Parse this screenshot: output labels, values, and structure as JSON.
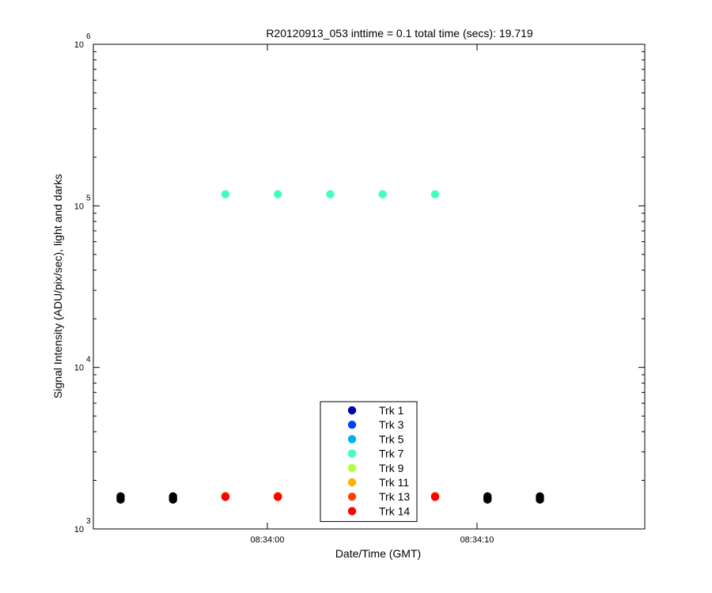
{
  "chart_data": {
    "type": "scatter",
    "title": "R20120913_053 inttime = 0.1 total time (secs): 19.719",
    "xlabel": "Date/Time (GMT)",
    "ylabel": "Signal Intensity (ADU/pix/sec), light and darks",
    "x_ticks": [
      {
        "value": 0,
        "label": "08:34:00"
      },
      {
        "value": 10,
        "label": "08:34:10"
      }
    ],
    "xlim": [
      -8.3,
      18.0
    ],
    "y_scale": "log",
    "ylim": [
      1000,
      1000000
    ],
    "y_ticks": [
      {
        "value": 1000,
        "base": "10",
        "exp": "3"
      },
      {
        "value": 10000,
        "base": "10",
        "exp": "4"
      },
      {
        "value": 100000,
        "base": "10",
        "exp": "5"
      },
      {
        "value": 1000000,
        "base": "10",
        "exp": "6"
      }
    ],
    "grid": false,
    "legend_position": "bottom-center",
    "series": [
      {
        "name": "Trk 1",
        "color": "#0000b0",
        "x": [],
        "y": []
      },
      {
        "name": "Trk 3",
        "color": "#0040ff",
        "x": [],
        "y": []
      },
      {
        "name": "Trk 5",
        "color": "#00b0f0",
        "x": [],
        "y": []
      },
      {
        "name": "Trk 7",
        "color": "#40ffc0",
        "x": [
          -2.0,
          0.5,
          3.0,
          5.5,
          8.0
        ],
        "y": [
          118000,
          118000,
          118000,
          118000,
          118000
        ]
      },
      {
        "name": "Trk 9",
        "color": "#b0ff40",
        "x": [
          -2.0,
          0.5,
          8.0
        ],
        "y": [
          1600,
          1600,
          1600
        ]
      },
      {
        "name": "Trk 11",
        "color": "#ffb000",
        "x": [
          -2.0,
          0.5,
          8.0
        ],
        "y": [
          1600,
          1600,
          1600
        ]
      },
      {
        "name": "Trk 13",
        "color": "#ff4000",
        "x": [
          -2.0,
          0.5,
          8.0
        ],
        "y": [
          1590,
          1590,
          1590
        ]
      },
      {
        "name": "Trk 14",
        "color": "#ff0000",
        "x": [
          -2.0,
          0.5,
          8.0
        ],
        "y": [
          1580,
          1580,
          1580
        ]
      }
    ],
    "dark_series": {
      "color": "#000000",
      "x": [
        -7.0,
        -7.0,
        -7.0,
        -4.5,
        -4.5,
        -4.5,
        10.5,
        10.5,
        10.5,
        13.0,
        13.0,
        13.0
      ],
      "y": [
        1520,
        1550,
        1590,
        1520,
        1550,
        1590,
        1520,
        1550,
        1590,
        1520,
        1550,
        1590
      ]
    }
  }
}
